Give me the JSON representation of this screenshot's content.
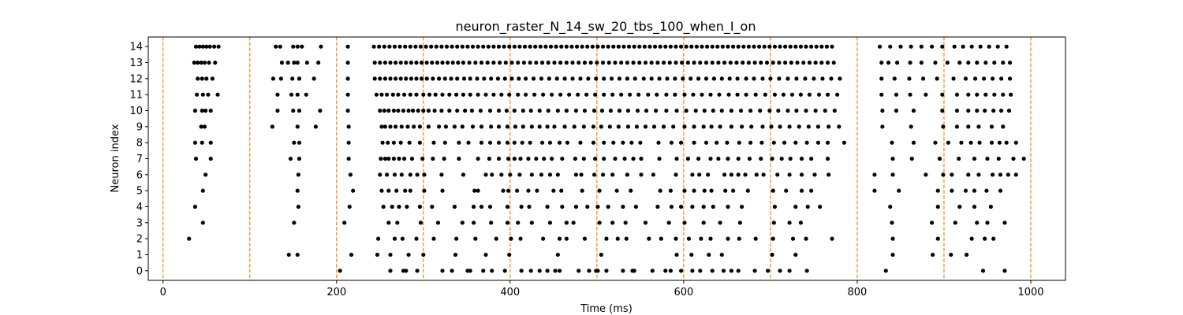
{
  "chart_data": {
    "type": "scatter",
    "title": "neuron_raster_N_14_sw_20_tbs_100_when_I_on",
    "xlabel": "Time (ms)",
    "ylabel": "Neuron index",
    "xlim": [
      -17,
      1040
    ],
    "ylim": [
      -0.6,
      14.6
    ],
    "x_ticks": [
      0,
      200,
      400,
      600,
      800,
      1000
    ],
    "y_ticks": [
      0,
      1,
      2,
      3,
      4,
      5,
      6,
      7,
      8,
      9,
      10,
      11,
      12,
      13,
      14
    ],
    "grid": false,
    "vlines": {
      "positions": [
        0,
        100,
        200,
        300,
        400,
        500,
        600,
        700,
        800,
        900,
        1000
      ],
      "color": "#ff7f0e",
      "style": "dashed"
    },
    "marker_color": "#000000",
    "series": [
      {
        "neuron": 0,
        "spikes": [
          204,
          262,
          277,
          280,
          293,
          322,
          333,
          351,
          354,
          369,
          379,
          394,
          413,
          424,
          434,
          443,
          452,
          457,
          479,
          491,
          499,
          501,
          511,
          530,
          541,
          543,
          564,
          579,
          585,
          597,
          610,
          619,
          633,
          646,
          655,
          663,
          682,
          697,
          711,
          722,
          742,
          833,
          945,
          970
        ]
      },
      {
        "neuron": 1,
        "spikes": [
          145,
          155,
          217,
          247,
          262,
          283,
          300,
          337,
          372,
          399,
          455,
          505,
          592,
          609,
          629,
          644,
          702,
          729,
          841,
          887,
          908,
          926
        ]
      },
      {
        "neuron": 2,
        "spikes": [
          30,
          248,
          267,
          276,
          292,
          312,
          338,
          360,
          384,
          401,
          412,
          438,
          457,
          465,
          486,
          511,
          524,
          534,
          560,
          574,
          591,
          606,
          620,
          631,
          651,
          664,
          683,
          703,
          726,
          741,
          771,
          841,
          893,
          932,
          947,
          957
        ]
      },
      {
        "neuron": 3,
        "spikes": [
          46,
          151,
          209,
          260,
          270,
          297,
          317,
          345,
          358,
          378,
          397,
          409,
          425,
          446,
          465,
          473,
          503,
          518,
          533,
          556,
          583,
          601,
          623,
          642,
          665,
          704,
          722,
          735,
          840,
          886,
          913,
          938,
          950,
          970
        ]
      },
      {
        "neuron": 4,
        "spikes": [
          37,
          156,
          215,
          254,
          264,
          272,
          281,
          296,
          310,
          336,
          358,
          367,
          377,
          397,
          413,
          422,
          443,
          460,
          476,
          489,
          501,
          513,
          530,
          545,
          570,
          586,
          597,
          610,
          623,
          634,
          651,
          667,
          705,
          729,
          743,
          757,
          838,
          893,
          918,
          935,
          954
        ]
      },
      {
        "neuron": 5,
        "spikes": [
          46,
          155,
          219,
          252,
          260,
          269,
          279,
          285,
          301,
          322,
          359,
          363,
          392,
          398,
          408,
          421,
          431,
          450,
          459,
          483,
          503,
          523,
          539,
          573,
          585,
          601,
          612,
          624,
          632,
          648,
          657,
          674,
          703,
          718,
          736,
          747,
          820,
          848,
          893,
          909,
          925,
          935,
          949,
          965
        ]
      },
      {
        "neuron": 6,
        "spikes": [
          49,
          156,
          216,
          250,
          258,
          267,
          275,
          285,
          293,
          301,
          321,
          346,
          372,
          379,
          390,
          400,
          411,
          425,
          436,
          446,
          455,
          476,
          482,
          497,
          507,
          518,
          535,
          551,
          565,
          591,
          610,
          618,
          628,
          647,
          655,
          663,
          671,
          684,
          692,
          708,
          722,
          736,
          751,
          767,
          820,
          841,
          879,
          899,
          909,
          928,
          940,
          956,
          965,
          974,
          983
        ]
      },
      {
        "neuron": 7,
        "spikes": [
          38,
          55,
          147,
          157,
          214,
          251,
          256,
          260,
          266,
          272,
          278,
          287,
          299,
          311,
          324,
          341,
          363,
          376,
          387,
          398,
          405,
          412,
          421,
          430,
          439,
          448,
          460,
          475,
          485,
          498,
          508,
          521,
          532,
          542,
          551,
          572,
          592,
          605,
          617,
          631,
          640,
          651,
          663,
          676,
          689,
          702,
          713,
          723,
          736,
          747,
          766,
          841,
          863,
          895,
          917,
          935,
          950,
          963,
          980,
          992
        ]
      },
      {
        "neuron": 8,
        "spikes": [
          37,
          45,
          55,
          151,
          157,
          214,
          253,
          259,
          266,
          274,
          284,
          296,
          312,
          325,
          341,
          352,
          367,
          377,
          387,
          397,
          405,
          414,
          423,
          437,
          446,
          457,
          466,
          481,
          496,
          508,
          519,
          530,
          540,
          550,
          571,
          586,
          597,
          612,
          626,
          638,
          650,
          664,
          677,
          690,
          704,
          716,
          729,
          742,
          755,
          766,
          785,
          840,
          865,
          890,
          905,
          920,
          931,
          941,
          955,
          964,
          972,
          983
        ]
      },
      {
        "neuron": 9,
        "spikes": [
          44,
          48,
          126,
          155,
          176,
          214,
          252,
          256,
          262,
          268,
          275,
          282,
          289,
          296,
          306,
          318,
          326,
          336,
          345,
          357,
          367,
          378,
          387,
          397,
          406,
          415,
          425,
          434,
          443,
          451,
          463,
          474,
          485,
          496,
          505,
          515,
          525,
          536,
          546,
          556,
          566,
          577,
          588,
          601,
          612,
          623,
          632,
          642,
          655,
          667,
          678,
          691,
          701,
          711,
          722,
          733,
          744,
          755,
          767,
          779,
          829,
          862,
          899,
          915,
          928,
          940,
          955,
          968
        ]
      },
      {
        "neuron": 10,
        "spikes": [
          37,
          45,
          49,
          55,
          132,
          150,
          157,
          181,
          213,
          250,
          255,
          260,
          266,
          271,
          277,
          283,
          288,
          294,
          300,
          306,
          313,
          321,
          330,
          339,
          348,
          356,
          366,
          377,
          387,
          396,
          405,
          415,
          424,
          434,
          444,
          455,
          465,
          476,
          486,
          497,
          506,
          516,
          526,
          536,
          547,
          557,
          568,
          580,
          592,
          603,
          614,
          624,
          634,
          644,
          655,
          666,
          677,
          688,
          699,
          709,
          720,
          730,
          741,
          752,
          763,
          774,
          829,
          845,
          865,
          898,
          915,
          928,
          938,
          947,
          957,
          966,
          975
        ]
      },
      {
        "neuron": 11,
        "spikes": [
          39,
          46,
          52,
          63,
          132,
          148,
          155,
          165,
          213,
          246,
          252,
          258,
          265,
          271,
          278,
          285,
          292,
          300,
          307,
          314,
          322,
          330,
          338,
          346,
          354,
          363,
          372,
          381,
          390,
          399,
          409,
          418,
          428,
          438,
          448,
          458,
          468,
          478,
          488,
          498,
          508,
          518,
          528,
          538,
          548,
          559,
          569,
          580,
          590,
          601,
          611,
          621,
          631,
          641,
          652,
          662,
          672,
          683,
          694,
          705,
          715,
          725,
          735,
          745,
          756,
          766,
          777,
          828,
          845,
          861,
          879,
          898,
          915,
          928,
          938,
          948,
          958,
          968,
          977
        ]
      },
      {
        "neuron": 12,
        "spikes": [
          40,
          45,
          50,
          57,
          127,
          136,
          149,
          157,
          174,
          213,
          244,
          250,
          256,
          262,
          268,
          274,
          280,
          286,
          292,
          298,
          304,
          311,
          318,
          325,
          332,
          339,
          347,
          354,
          362,
          370,
          378,
          386,
          394,
          402,
          410,
          418,
          427,
          436,
          445,
          454,
          463,
          472,
          481,
          490,
          499,
          508,
          517,
          526,
          535,
          544,
          554,
          563,
          572,
          581,
          590,
          599,
          608,
          617,
          626,
          635,
          644,
          653,
          662,
          672,
          681,
          691,
          700,
          710,
          720,
          730,
          740,
          750,
          760,
          770,
          780,
          828,
          843,
          860,
          876,
          892,
          911,
          925,
          936,
          946,
          956,
          966,
          976
        ]
      },
      {
        "neuron": 13,
        "spikes": [
          36,
          40,
          44,
          48,
          53,
          60,
          137,
          144,
          151,
          155,
          166,
          179,
          213,
          244,
          250,
          256,
          262,
          268,
          274,
          280,
          286,
          292,
          298,
          304,
          310,
          316,
          322,
          328,
          334,
          340,
          346,
          353,
          360,
          367,
          374,
          381,
          388,
          395,
          402,
          409,
          416,
          423,
          430,
          437,
          444,
          451,
          458,
          465,
          472,
          479,
          486,
          493,
          500,
          507,
          514,
          521,
          528,
          535,
          542,
          549,
          556,
          563,
          570,
          577,
          584,
          591,
          598,
          605,
          612,
          619,
          626,
          633,
          640,
          647,
          654,
          661,
          668,
          675,
          682,
          689,
          696,
          703,
          710,
          717,
          724,
          731,
          738,
          745,
          752,
          759,
          766,
          773,
          828,
          836,
          846,
          861,
          874,
          890,
          904,
          918,
          928,
          938,
          948,
          958,
          968,
          976
        ]
      },
      {
        "neuron": 14,
        "spikes": [
          38,
          42,
          46,
          50,
          54,
          59,
          64,
          130,
          135,
          150,
          155,
          160,
          182,
          213,
          243,
          249,
          255,
          261,
          267,
          273,
          279,
          285,
          291,
          297,
          303,
          309,
          315,
          321,
          327,
          333,
          339,
          345,
          351,
          357,
          363,
          369,
          375,
          381,
          387,
          393,
          399,
          405,
          411,
          417,
          423,
          429,
          435,
          441,
          447,
          453,
          459,
          465,
          471,
          477,
          483,
          489,
          495,
          501,
          507,
          513,
          519,
          525,
          531,
          537,
          543,
          549,
          555,
          561,
          567,
          573,
          579,
          585,
          591,
          597,
          603,
          609,
          615,
          621,
          627,
          633,
          639,
          645,
          651,
          657,
          663,
          669,
          675,
          681,
          687,
          693,
          699,
          705,
          711,
          717,
          723,
          729,
          735,
          741,
          747,
          753,
          759,
          765,
          771,
          826,
          838,
          850,
          862,
          874,
          886,
          898,
          912,
          922,
          932,
          942,
          952,
          962,
          972
        ]
      }
    ]
  }
}
